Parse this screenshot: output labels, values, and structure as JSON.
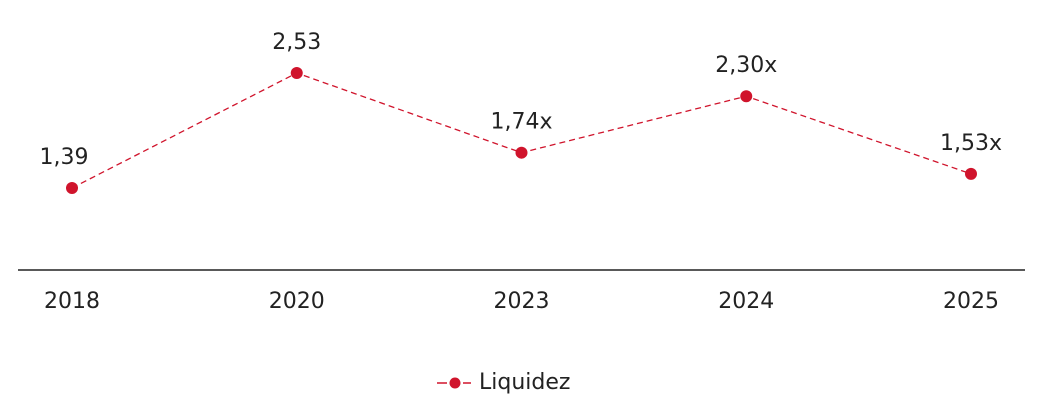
{
  "chart_data": {
    "type": "line",
    "categories": [
      "2018",
      "2020",
      "2023",
      "2024",
      "2025"
    ],
    "series": [
      {
        "name": "Liquidez",
        "color": "#d0142c",
        "values": [
          1.39,
          2.53,
          1.74,
          2.3,
          1.53
        ],
        "value_labels": [
          "1,39",
          "2,53",
          "1,74x",
          "2,30x",
          "1,53x"
        ]
      }
    ],
    "legend": "bottom"
  }
}
